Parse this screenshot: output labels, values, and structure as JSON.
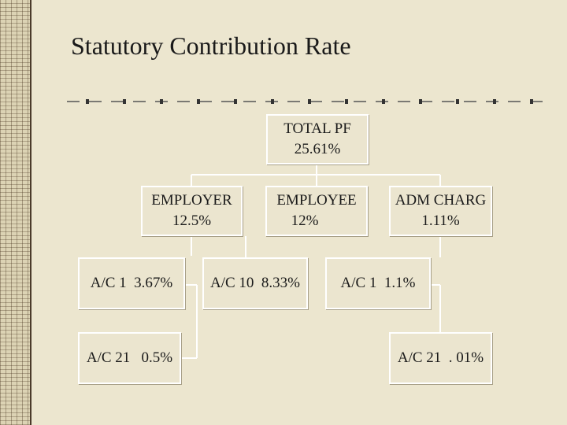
{
  "slide": {
    "title": "Statutory Contribution Rate"
  },
  "nodes": {
    "total_pf": {
      "label": "TOTAL PF",
      "value": "25.61%"
    },
    "employer": {
      "label": "EMPLOYER",
      "value": "12.5%"
    },
    "employee": {
      "label": "EMPLOYEE",
      "value": "12%"
    },
    "adm_charg": {
      "label": "ADM CHARG",
      "value": "1.11%"
    },
    "employer_ac1": {
      "text": "A/C 1  3.67%"
    },
    "employer_ac21": {
      "text": "A/C 21   0.5%"
    },
    "employee_ac10": {
      "text": "A/C 10  8.33%"
    },
    "adm_ac1": {
      "text": "A/C 1  1.1%"
    },
    "adm_ac21": {
      "text": "A/C 21  . 01%"
    }
  },
  "colors": {
    "background": "#ece6cf",
    "box_border": "#ffffff",
    "connector": "#ffffff",
    "text": "#1a1a1a"
  }
}
